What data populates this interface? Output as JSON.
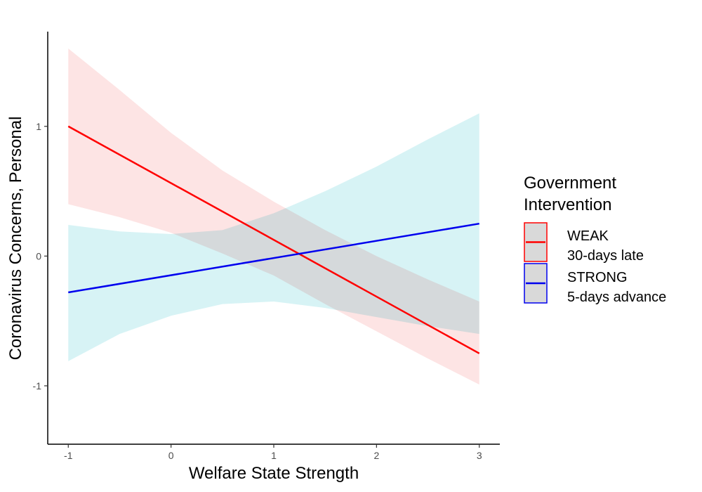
{
  "chart_data": {
    "type": "line",
    "title": "",
    "xlabel": "Welfare State Strength",
    "ylabel": "Coronavirus Concerns, Personal",
    "xlim": [
      -1.2,
      3.2
    ],
    "ylim": [
      -1.45,
      1.73
    ],
    "x_ticks": [
      -1,
      0,
      1,
      2,
      3
    ],
    "y_ticks": [
      -1,
      0,
      1
    ],
    "grid": false,
    "legend": {
      "position": "right",
      "title_line1": "Government",
      "title_line2": "Intervention"
    },
    "series": [
      {
        "name": "WEAK",
        "label_line1": "WEAK",
        "label_line2": "30-days late",
        "color": "#ff0000",
        "fill_color": "#fde4e4",
        "key_border_color": "#ff0000",
        "x": [
          -1,
          3
        ],
        "y": [
          1.0,
          -0.75
        ],
        "ci_x": [
          -1,
          -0.5,
          0,
          0.5,
          1,
          1.5,
          2,
          2.5,
          3
        ],
        "ci_lower": [
          0.4,
          0.3,
          0.18,
          0.02,
          -0.15,
          -0.37,
          -0.58,
          -0.79,
          -0.99
        ],
        "ci_upper": [
          1.6,
          1.28,
          0.95,
          0.66,
          0.42,
          0.2,
          0.0,
          -0.18,
          -0.35
        ]
      },
      {
        "name": "STRONG",
        "label_line1": "STRONG",
        "label_line2": "5-days advance",
        "color": "#0000ee",
        "fill_color": "#d7f3f5",
        "key_border_color": "#0000ee",
        "x": [
          -1,
          3
        ],
        "y": [
          -0.28,
          0.25
        ],
        "ci_x": [
          -1,
          -0.5,
          0,
          0.5,
          1,
          1.5,
          2,
          2.5,
          3
        ],
        "ci_lower": [
          -0.81,
          -0.6,
          -0.46,
          -0.37,
          -0.35,
          -0.4,
          -0.47,
          -0.54,
          -0.6
        ],
        "ci_upper": [
          0.24,
          0.19,
          0.17,
          0.2,
          0.33,
          0.5,
          0.69,
          0.9,
          1.1
        ]
      }
    ]
  }
}
